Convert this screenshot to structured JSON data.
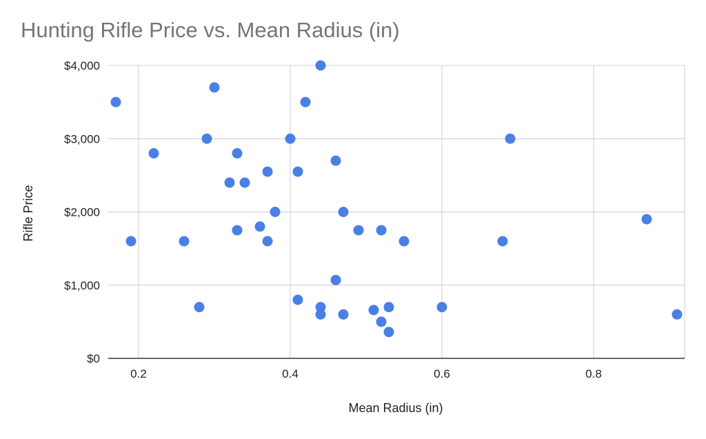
{
  "chart_data": {
    "type": "scatter",
    "title": "Hunting Rifle Price vs. Mean Radius (in)",
    "xlabel": "Mean Radius (in)",
    "ylabel": "Rifle Price",
    "xlim": [
      0.16,
      0.92
    ],
    "ylim": [
      0,
      4000
    ],
    "x_ticks": [
      0.2,
      0.4,
      0.6,
      0.8
    ],
    "x_tick_labels": [
      "0.2",
      "0.4",
      "0.6",
      "0.8"
    ],
    "y_ticks": [
      0,
      1000,
      2000,
      3000,
      4000
    ],
    "y_tick_labels": [
      "$0",
      "$1,000",
      "$2,000",
      "$3,000",
      "$4,000"
    ],
    "grid": true,
    "legend": "none",
    "point_color": "#4a7fe5",
    "series": [
      {
        "x": [
          0.17,
          0.19,
          0.22,
          0.26,
          0.28,
          0.29,
          0.3,
          0.32,
          0.33,
          0.33,
          0.34,
          0.36,
          0.37,
          0.37,
          0.38,
          0.4,
          0.41,
          0.41,
          0.42,
          0.44,
          0.44,
          0.44,
          0.46,
          0.46,
          0.47,
          0.47,
          0.49,
          0.51,
          0.52,
          0.52,
          0.53,
          0.53,
          0.55,
          0.6,
          0.68,
          0.69,
          0.87,
          0.91
        ],
        "y": [
          3500,
          1600,
          2800,
          1600,
          700,
          3000,
          3700,
          2400,
          2800,
          1750,
          2400,
          1800,
          2550,
          1600,
          2000,
          3000,
          2550,
          800,
          3500,
          4000,
          700,
          600,
          2700,
          1070,
          2000,
          600,
          1750,
          660,
          1750,
          500,
          700,
          360,
          1600,
          700,
          1600,
          3000,
          1900,
          600
        ]
      }
    ]
  }
}
